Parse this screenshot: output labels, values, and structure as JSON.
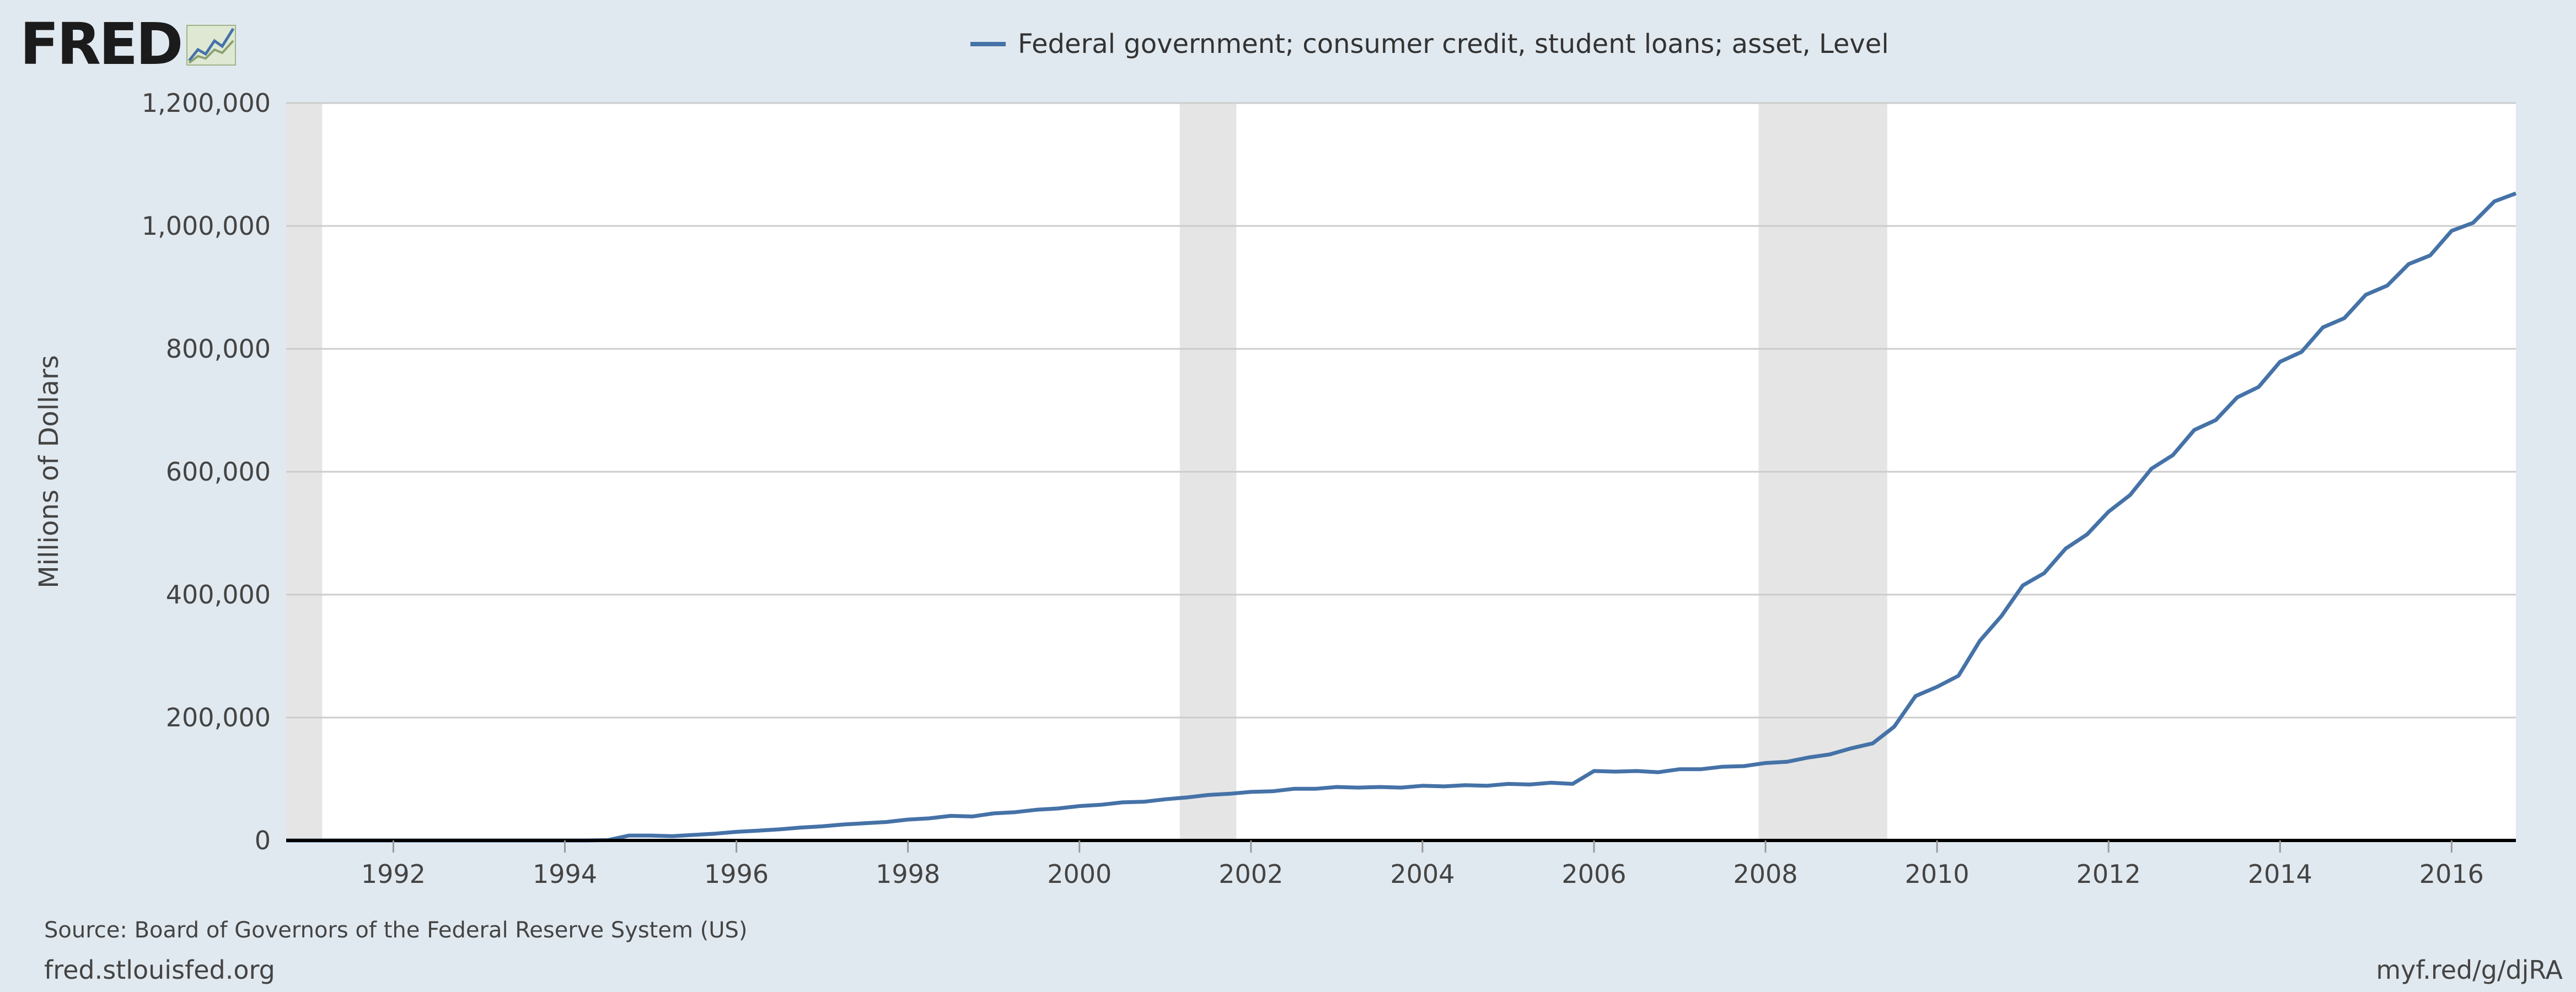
{
  "logo": {
    "text": "FRED",
    "icon": "chart-line-icon"
  },
  "colors": {
    "background": "#e1e9f0",
    "plot_background": "#ffffff",
    "series": "#4572a7",
    "recession": "#e5e5e5",
    "grid": "#cccccc"
  },
  "footer": {
    "source": "Source: Board of Governors of the Federal Reserve System (US)",
    "site": "fred.stlouisfed.org",
    "short_link": "myf.red/g/djRA"
  },
  "chart_data": {
    "type": "line",
    "title": "",
    "xlabel": "",
    "ylabel": "Millions of Dollars",
    "xlim": [
      1990.75,
      2016.75
    ],
    "ylim": [
      0,
      1200000
    ],
    "grid": true,
    "legend_placement": "top-center",
    "x_ticks": [
      "1992",
      "1994",
      "1996",
      "1998",
      "2000",
      "2002",
      "2004",
      "2006",
      "2008",
      "2010",
      "2012",
      "2014",
      "2016"
    ],
    "y_ticks": [
      "0",
      "200,000",
      "400,000",
      "600,000",
      "800,000",
      "1,000,000",
      "1,200,000"
    ],
    "recessions": [
      [
        1990.75,
        1991.17
      ],
      [
        2001.17,
        2001.83
      ],
      [
        2007.92,
        2009.42
      ]
    ],
    "series": [
      {
        "name": "Federal government; consumer credit, student loans; asset, Level",
        "x": [
          1990.75,
          1991,
          1991.25,
          1991.5,
          1991.75,
          1992,
          1992.25,
          1992.5,
          1992.75,
          1993,
          1993.25,
          1993.5,
          1993.75,
          1994,
          1994.25,
          1994.5,
          1994.75,
          1995,
          1995.25,
          1995.5,
          1995.75,
          1996,
          1996.25,
          1996.5,
          1996.75,
          1997,
          1997.25,
          1997.5,
          1997.75,
          1998,
          1998.25,
          1998.5,
          1998.75,
          1999,
          1999.25,
          1999.5,
          1999.75,
          2000,
          2000.25,
          2000.5,
          2000.75,
          2001,
          2001.25,
          2001.5,
          2001.75,
          2002,
          2002.25,
          2002.5,
          2002.75,
          2003,
          2003.25,
          2003.5,
          2003.75,
          2004,
          2004.25,
          2004.5,
          2004.75,
          2005,
          2005.25,
          2005.5,
          2005.75,
          2006,
          2006.25,
          2006.5,
          2006.75,
          2007,
          2007.25,
          2007.5,
          2007.75,
          2008,
          2008.25,
          2008.5,
          2008.75,
          2009,
          2009.25,
          2009.5,
          2009.75,
          2010,
          2010.25,
          2010.5,
          2010.75,
          2011,
          2011.25,
          2011.5,
          2011.75,
          2012,
          2012.25,
          2012.5,
          2012.75,
          2013,
          2013.25,
          2013.5,
          2013.75,
          2014,
          2014.25,
          2014.5,
          2014.75,
          2015,
          2015.25,
          2015.5,
          2015.75,
          2016,
          2016.25,
          2016.5,
          2016.75
        ],
        "values": [
          0,
          0,
          0,
          0,
          0,
          0,
          0,
          0,
          0,
          0,
          0,
          0,
          0,
          0,
          0,
          500,
          8000,
          8000,
          7000,
          9000,
          11000,
          14000,
          16000,
          18000,
          21000,
          23000,
          26000,
          28000,
          30000,
          34000,
          36000,
          40000,
          39000,
          44000,
          46000,
          50000,
          52000,
          56000,
          58000,
          62000,
          63000,
          67000,
          70000,
          74000,
          76000,
          79000,
          80000,
          84000,
          84000,
          87000,
          86000,
          87000,
          86000,
          89000,
          88000,
          90000,
          89000,
          92000,
          91000,
          94000,
          92000,
          113000,
          112000,
          113000,
          111000,
          116000,
          116000,
          120000,
          121000,
          126000,
          128000,
          135000,
          140000,
          150000,
          158000,
          185000,
          235000,
          250000,
          268000,
          325000,
          365000,
          415000,
          435000,
          475000,
          498000,
          535000,
          562000,
          605000,
          627000,
          668000,
          684000,
          721000,
          738000,
          779000,
          795000,
          835000,
          850000,
          888000,
          903000,
          938000,
          952000,
          992000,
          1005000,
          1040000,
          1053000
        ]
      }
    ]
  }
}
